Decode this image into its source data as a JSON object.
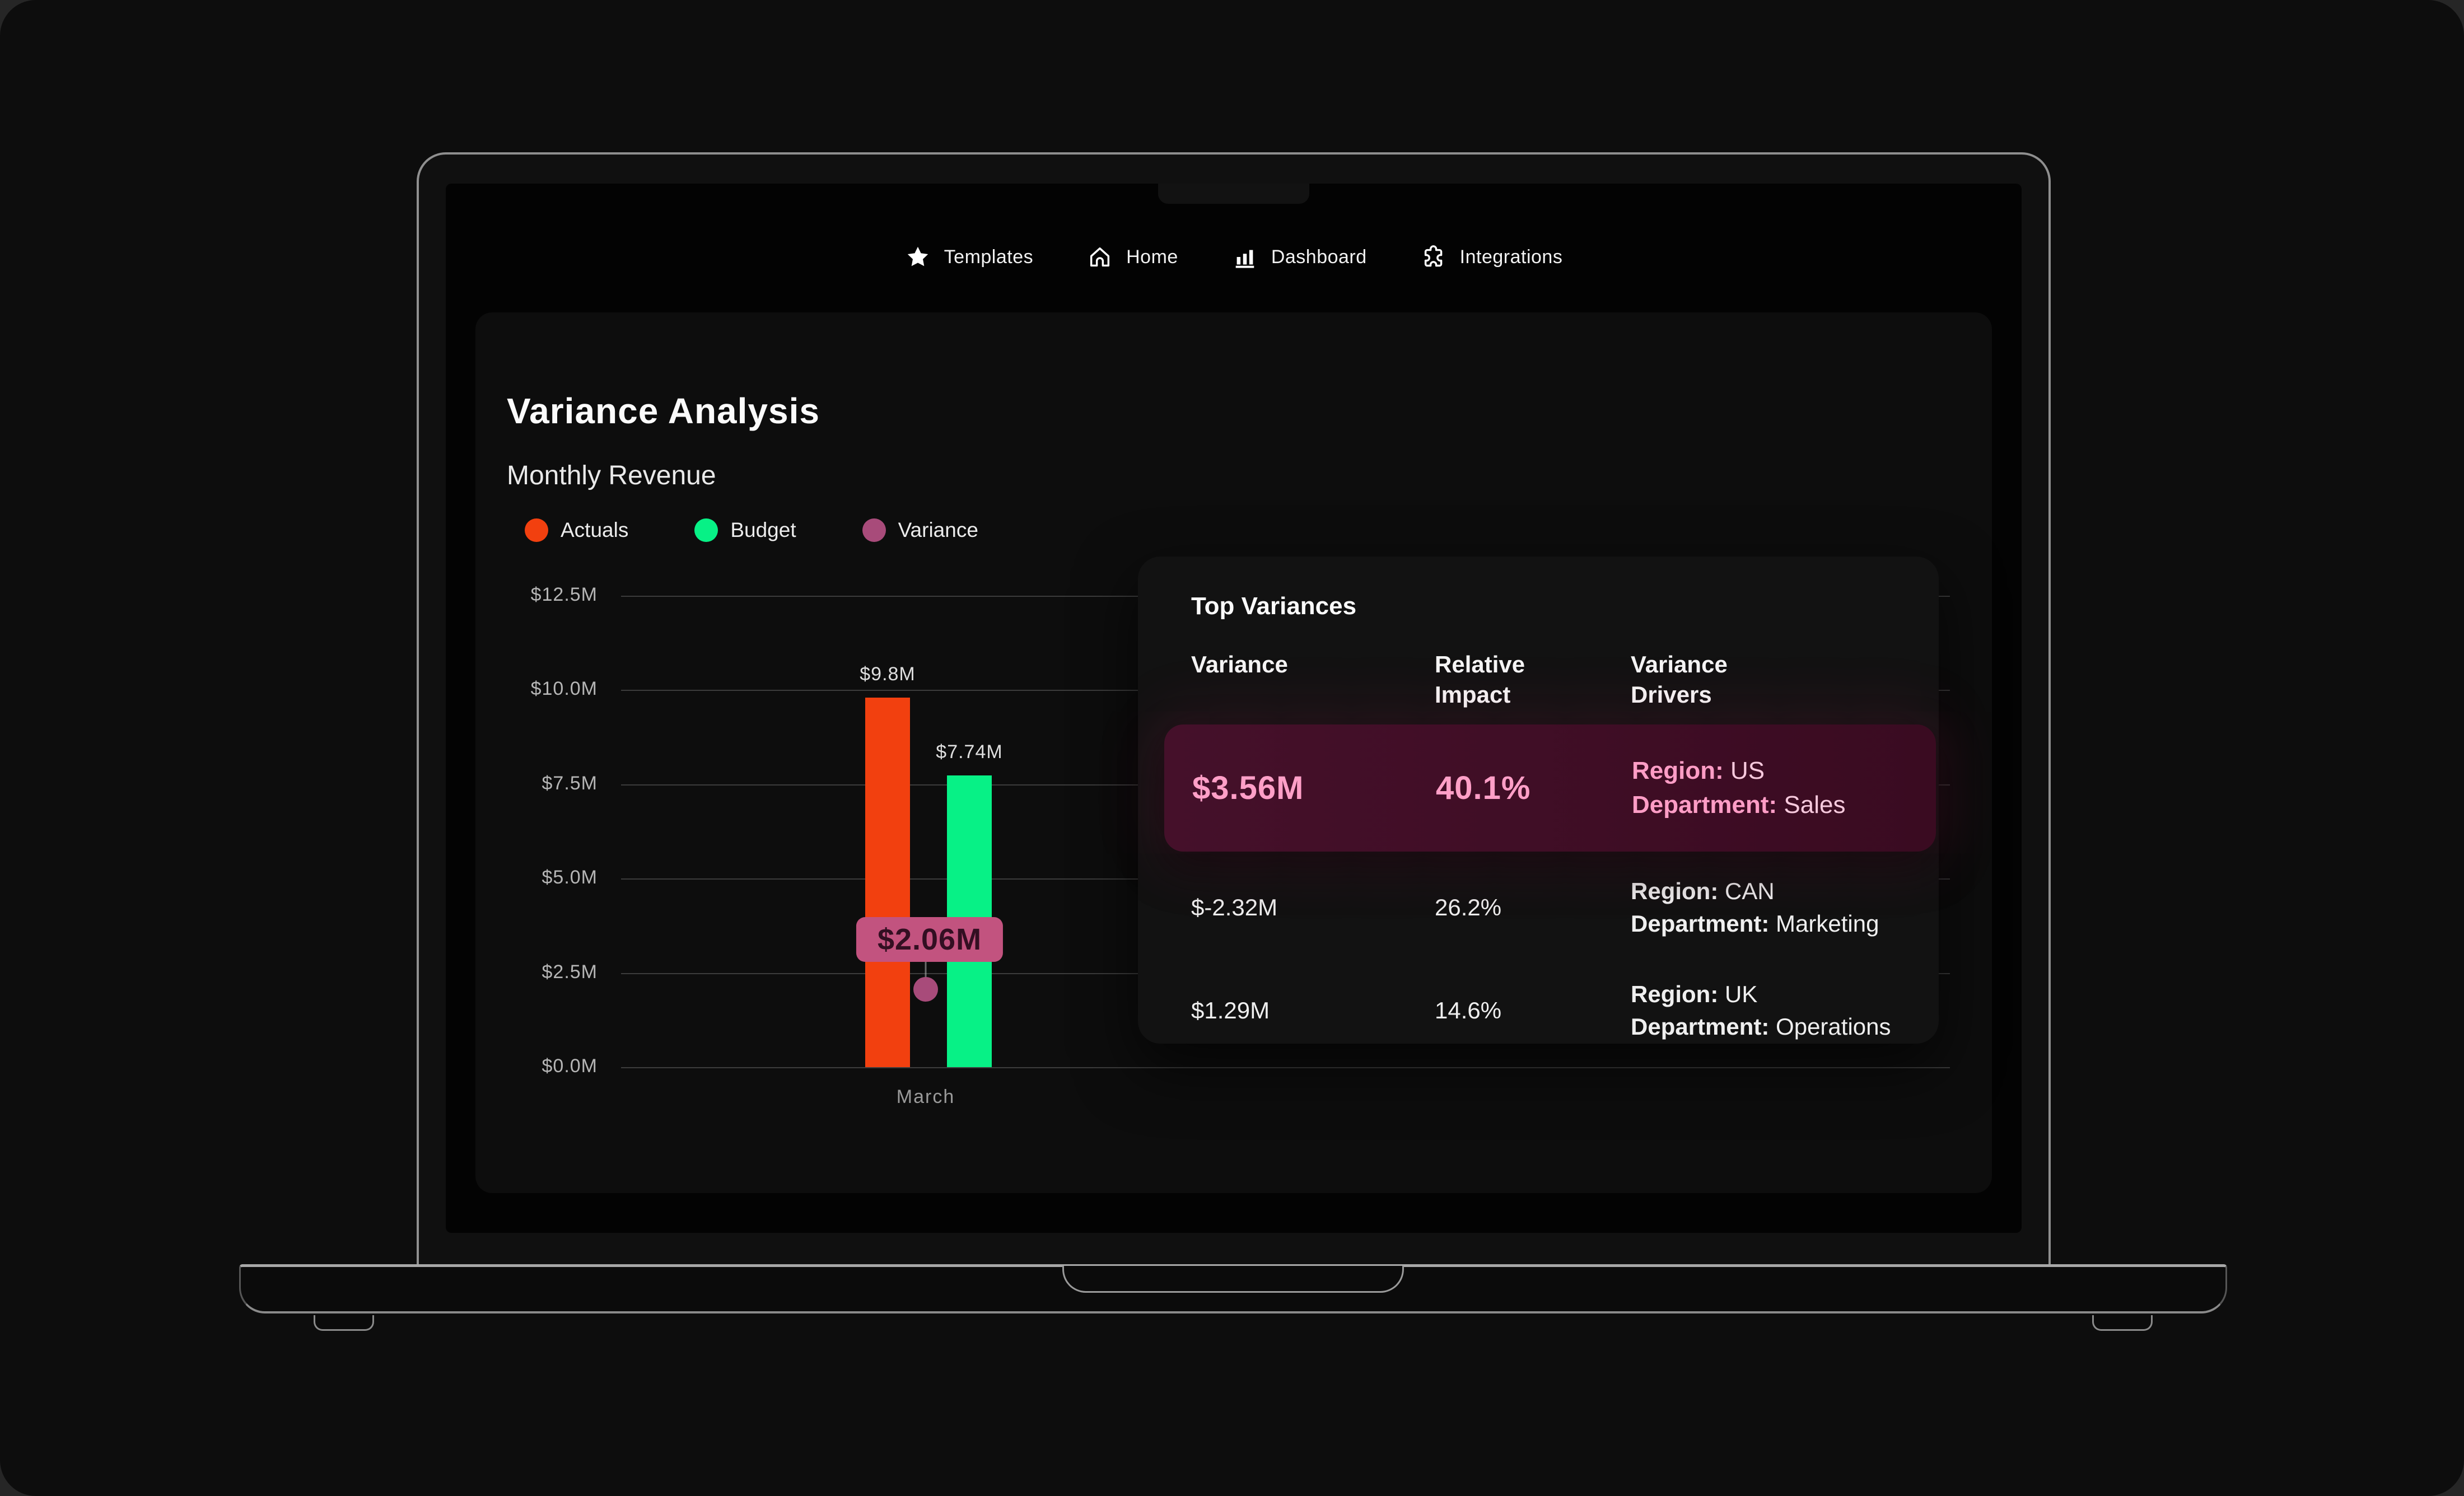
{
  "nav": {
    "items": [
      {
        "icon": "star-icon",
        "label": "Templates"
      },
      {
        "icon": "home-icon",
        "label": "Home"
      },
      {
        "icon": "bar-chart-icon",
        "label": "Dashboard"
      },
      {
        "icon": "puzzle-icon",
        "label": "Integrations"
      }
    ]
  },
  "page": {
    "title": "Variance Analysis",
    "subtitle": "Monthly Revenue"
  },
  "legend": [
    {
      "label": "Actuals",
      "color": "#f2400f"
    },
    {
      "label": "Budget",
      "color": "#07f186"
    },
    {
      "label": "Variance",
      "color": "#a84b7a"
    }
  ],
  "chart_data": {
    "type": "bar",
    "title": "Variance Analysis",
    "subtitle": "Monthly Revenue",
    "categories": [
      "March"
    ],
    "series": [
      {
        "name": "Actuals",
        "values": [
          9.8
        ],
        "color": "#f2400f",
        "data_label": "$9.8M"
      },
      {
        "name": "Budget",
        "values": [
          7.74
        ],
        "color": "#07f186",
        "data_label": "$7.74M"
      }
    ],
    "variance_series": {
      "name": "Variance",
      "values": [
        2.06
      ],
      "color": "#a84b7a",
      "badge_label": "$2.06M",
      "badge_color": "#c2537f"
    },
    "yticks": [
      "$12.5M",
      "$10.0M",
      "$7.5M",
      "$5.0M",
      "$2.5M",
      "$0.0M"
    ],
    "ylim": [
      0,
      12.5
    ],
    "grid": true,
    "legend_position": "top",
    "xlabel": "",
    "ylabel": ""
  },
  "table": {
    "title": "Top Variances",
    "columns": {
      "c1": "Variance",
      "c2": "Relative\nImpact",
      "c3": "Variance\nDrivers"
    },
    "region_label": "Region:",
    "department_label": "Department:",
    "rows": [
      {
        "variance": "$3.56M",
        "impact": "40.1%",
        "region": "US",
        "department": "Sales",
        "highlighted": true
      },
      {
        "variance": "$-2.32M",
        "impact": "26.2%",
        "region": "CAN",
        "department": "Marketing",
        "highlighted": false
      },
      {
        "variance": "$1.29M",
        "impact": "14.6%",
        "region": "UK",
        "department": "Operations",
        "highlighted": false
      }
    ]
  },
  "colors": {
    "accent_pink": "#ff9fc7",
    "highlight_row_bg": "#400d24",
    "panel_bg": "#0d0d0d",
    "screen_bg": "#030303"
  }
}
